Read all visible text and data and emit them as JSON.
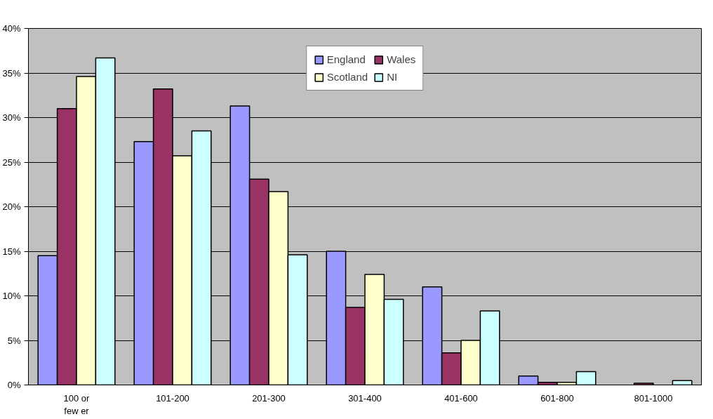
{
  "chart_data": {
    "type": "bar",
    "categories": [
      "100 or\nfew er",
      "101-200",
      "201-300",
      "301-400",
      "401-600",
      "601-800",
      "801-1000"
    ],
    "series": [
      {
        "name": "England",
        "color": "#9999ff",
        "values": [
          14.5,
          27.3,
          31.3,
          15.0,
          11.0,
          1.0,
          null
        ]
      },
      {
        "name": "Wales",
        "color": "#993366",
        "values": [
          31.0,
          33.2,
          23.1,
          8.7,
          3.6,
          0.3,
          0.2
        ]
      },
      {
        "name": "Scotland",
        "color": "#ffffcc",
        "values": [
          34.6,
          25.7,
          21.7,
          12.4,
          5.0,
          0.3,
          null
        ]
      },
      {
        "name": "NI",
        "color": "#ccffff",
        "values": [
          36.7,
          28.5,
          14.6,
          9.6,
          8.3,
          1.5,
          0.5
        ]
      }
    ],
    "ylim": [
      0,
      40
    ],
    "yticks": [
      {
        "value": 0,
        "label": "0%"
      },
      {
        "value": 5,
        "label": "5%"
      },
      {
        "value": 10,
        "label": "10%"
      },
      {
        "value": 15,
        "label": "15%"
      },
      {
        "value": 20,
        "label": "20%"
      },
      {
        "value": 25,
        "label": "25%"
      },
      {
        "value": 30,
        "label": "30%"
      },
      {
        "value": 35,
        "label": "35%"
      },
      {
        "value": 40,
        "label": "40%"
      }
    ],
    "grid": "y",
    "legend": "top"
  }
}
